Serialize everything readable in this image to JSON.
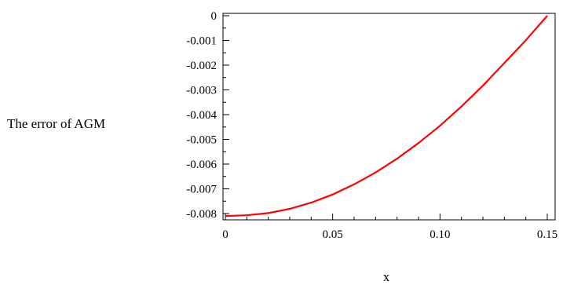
{
  "chart_data": {
    "type": "line",
    "xlabel": "x",
    "ylabel": "The error of AGM",
    "xlim": [
      0,
      0.15
    ],
    "ylim": [
      -0.0082,
      0
    ],
    "xticks": [
      {
        "value": 0,
        "label": "0"
      },
      {
        "value": 0.05,
        "label": "0.05"
      },
      {
        "value": 0.1,
        "label": "0.10"
      },
      {
        "value": 0.15,
        "label": "0.15"
      }
    ],
    "yticks": [
      {
        "value": 0,
        "label": "0"
      },
      {
        "value": -0.001,
        "label": "-0.001"
      },
      {
        "value": -0.002,
        "label": "-0.002"
      },
      {
        "value": -0.003,
        "label": "-0.003"
      },
      {
        "value": -0.004,
        "label": "-0.004"
      },
      {
        "value": -0.005,
        "label": "-0.005"
      },
      {
        "value": -0.006,
        "label": "-0.006"
      },
      {
        "value": -0.007,
        "label": "-0.007"
      },
      {
        "value": -0.008,
        "label": "-0.008"
      }
    ],
    "grid": false,
    "series": [
      {
        "color": "#ff0000",
        "x": [
          0,
          0.01,
          0.02,
          0.03,
          0.04,
          0.05,
          0.06,
          0.07,
          0.08,
          0.09,
          0.1,
          0.11,
          0.12,
          0.13,
          0.14,
          0.15
        ],
        "y": [
          -0.0081,
          -0.00807,
          -0.00798,
          -0.00781,
          -0.00756,
          -0.00723,
          -0.00682,
          -0.00634,
          -0.00578,
          -0.00515,
          -0.00445,
          -0.00367,
          -0.00283,
          -0.00191,
          -0.00099,
          0
        ]
      }
    ]
  }
}
